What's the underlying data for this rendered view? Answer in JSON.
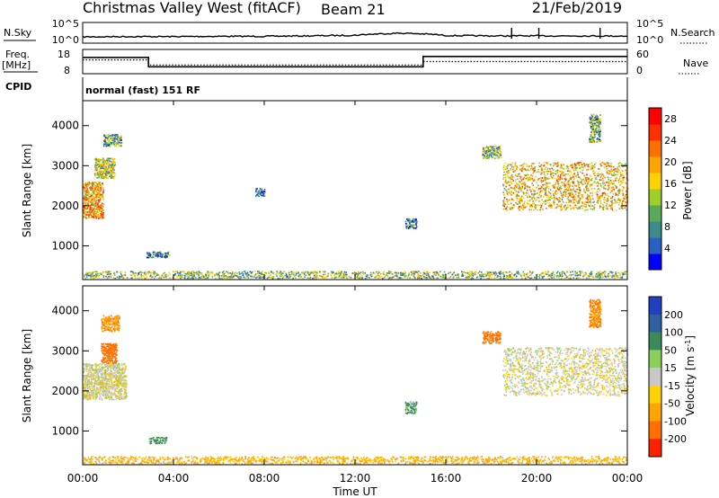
{
  "header": {
    "title": "Christmas Valley West (fitACF)",
    "beam": "Beam 21",
    "date": "21/Feb/2019"
  },
  "status_panel": {
    "nsky_label": "N.Sky",
    "nsearch_label": "N.Search",
    "freq_label_line1": "Freq.",
    "freq_label_line2": "[MHz]",
    "nave_label": "Nave",
    "cpid_label": "CPID",
    "noise_ticks_left": [
      "10^5",
      "10^0"
    ],
    "noise_ticks_right": [
      "10^5",
      "10^0"
    ],
    "freq_ticks": [
      "18",
      "8"
    ],
    "nave_ticks": [
      "60",
      "0"
    ],
    "cpid_text": "normal (fast) 151 RF"
  },
  "x_axis": {
    "label": "Time UT",
    "ticks": [
      "00:00",
      "04:00",
      "08:00",
      "12:00",
      "16:00",
      "20:00",
      "00:00"
    ],
    "range_hours": [
      0,
      24
    ]
  },
  "chart_data": [
    {
      "type": "line",
      "title": "N.Sky / N.Search",
      "y_scale": "log",
      "ylim": [
        1,
        100000
      ],
      "series": [
        {
          "name": "N.Sky",
          "x": [
            0,
            2,
            4,
            6,
            8,
            10,
            12,
            13,
            14,
            15,
            16,
            18,
            20,
            22,
            24
          ],
          "y": [
            20,
            25,
            25,
            30,
            30,
            40,
            60,
            150,
            250,
            150,
            50,
            40,
            40,
            40,
            35
          ]
        }
      ],
      "spikes_at_hours": [
        18.9,
        20.1,
        22.8
      ]
    },
    {
      "type": "line",
      "title": "Freq / Nave",
      "series": [
        {
          "name": "Freq. [MHz]",
          "x": [
            0,
            2.9,
            2.9,
            15.0,
            15.0,
            24
          ],
          "y": [
            15,
            15,
            10.5,
            10.5,
            15.5,
            15.5
          ]
        },
        {
          "name": "Nave",
          "x": [
            0,
            2.9,
            2.9,
            15.0,
            15.0,
            24
          ],
          "y": [
            35,
            35,
            20,
            20,
            30,
            30
          ]
        }
      ],
      "freq_ylim": [
        8,
        18
      ],
      "nave_ylim": [
        0,
        60
      ]
    },
    {
      "type": "heatmap",
      "title": "Power",
      "ylabel": "Slant Range [km]",
      "xlabel": "",
      "ylim": [
        180,
        4600
      ],
      "y_ticks": [
        1000,
        2000,
        3000,
        4000
      ],
      "colorbar": {
        "label": "Power [dB]",
        "ticks": [
          4,
          8,
          12,
          16,
          20,
          24,
          28
        ],
        "range": [
          0,
          30
        ],
        "colors": [
          "#0000ff",
          "#2b5fc2",
          "#3d8a8a",
          "#5aa85a",
          "#9ed02a",
          "#ffd200",
          "#ffa500",
          "#ff7000",
          "#ff3000",
          "#ff0000"
        ]
      },
      "echo_regions": [
        {
          "t": [
            0.0,
            0.9
          ],
          "r": [
            1700,
            2600
          ],
          "level": 19
        },
        {
          "t": [
            0.5,
            1.4
          ],
          "r": [
            2700,
            3200
          ],
          "level": 14
        },
        {
          "t": [
            0.9,
            1.7
          ],
          "r": [
            3500,
            3800
          ],
          "level": 10
        },
        {
          "t": [
            2.8,
            3.8
          ],
          "r": [
            720,
            860
          ],
          "level": 6
        },
        {
          "t": [
            7.6,
            8.0
          ],
          "r": [
            2250,
            2450
          ],
          "level": 5
        },
        {
          "t": [
            14.2,
            14.7
          ],
          "r": [
            1450,
            1700
          ],
          "level": 8
        },
        {
          "t": [
            17.6,
            18.4
          ],
          "r": [
            3200,
            3500
          ],
          "level": 12
        },
        {
          "t": [
            18.5,
            24.0
          ],
          "r": [
            1900,
            3100
          ],
          "level": 18
        },
        {
          "t": [
            22.3,
            22.8
          ],
          "r": [
            3600,
            4300
          ],
          "level": 10
        },
        {
          "t": [
            0.0,
            24.0
          ],
          "r": [
            200,
            380
          ],
          "level": 12
        }
      ]
    },
    {
      "type": "heatmap",
      "title": "Velocity",
      "ylabel": "Slant Range [km]",
      "xlabel": "Time UT",
      "ylim": [
        180,
        4600
      ],
      "y_ticks": [
        1000,
        2000,
        3000,
        4000
      ],
      "colorbar": {
        "label": "Velocity [m s^-1]",
        "ticks": [
          200,
          100,
          50,
          15,
          -15,
          -50,
          -100,
          -200
        ],
        "colors": [
          "#2040c0",
          "#3060a0",
          "#3a8a5a",
          "#8ad05a",
          "#c8c8c8",
          "#ffd200",
          "#ffa500",
          "#ff7000",
          "#ff2000"
        ]
      },
      "echo_regions": [
        {
          "t": [
            0.0,
            1.9
          ],
          "r": [
            1800,
            2700
          ],
          "level": -5
        },
        {
          "t": [
            0.8,
            1.5
          ],
          "r": [
            2700,
            3200
          ],
          "level": -120
        },
        {
          "t": [
            0.8,
            1.6
          ],
          "r": [
            3500,
            3900
          ],
          "level": -60
        },
        {
          "t": [
            2.9,
            3.7
          ],
          "r": [
            700,
            860
          ],
          "level": 40
        },
        {
          "t": [
            14.2,
            14.7
          ],
          "r": [
            1450,
            1750
          ],
          "level": 40
        },
        {
          "t": [
            17.6,
            18.4
          ],
          "r": [
            3200,
            3500
          ],
          "level": -100
        },
        {
          "t": [
            18.5,
            24.0
          ],
          "r": [
            1900,
            3100
          ],
          "level": -5
        },
        {
          "t": [
            22.3,
            22.8
          ],
          "r": [
            3600,
            4300
          ],
          "level": -80
        },
        {
          "t": [
            0.0,
            24.0
          ],
          "r": [
            200,
            380
          ],
          "level": -40
        }
      ]
    }
  ]
}
